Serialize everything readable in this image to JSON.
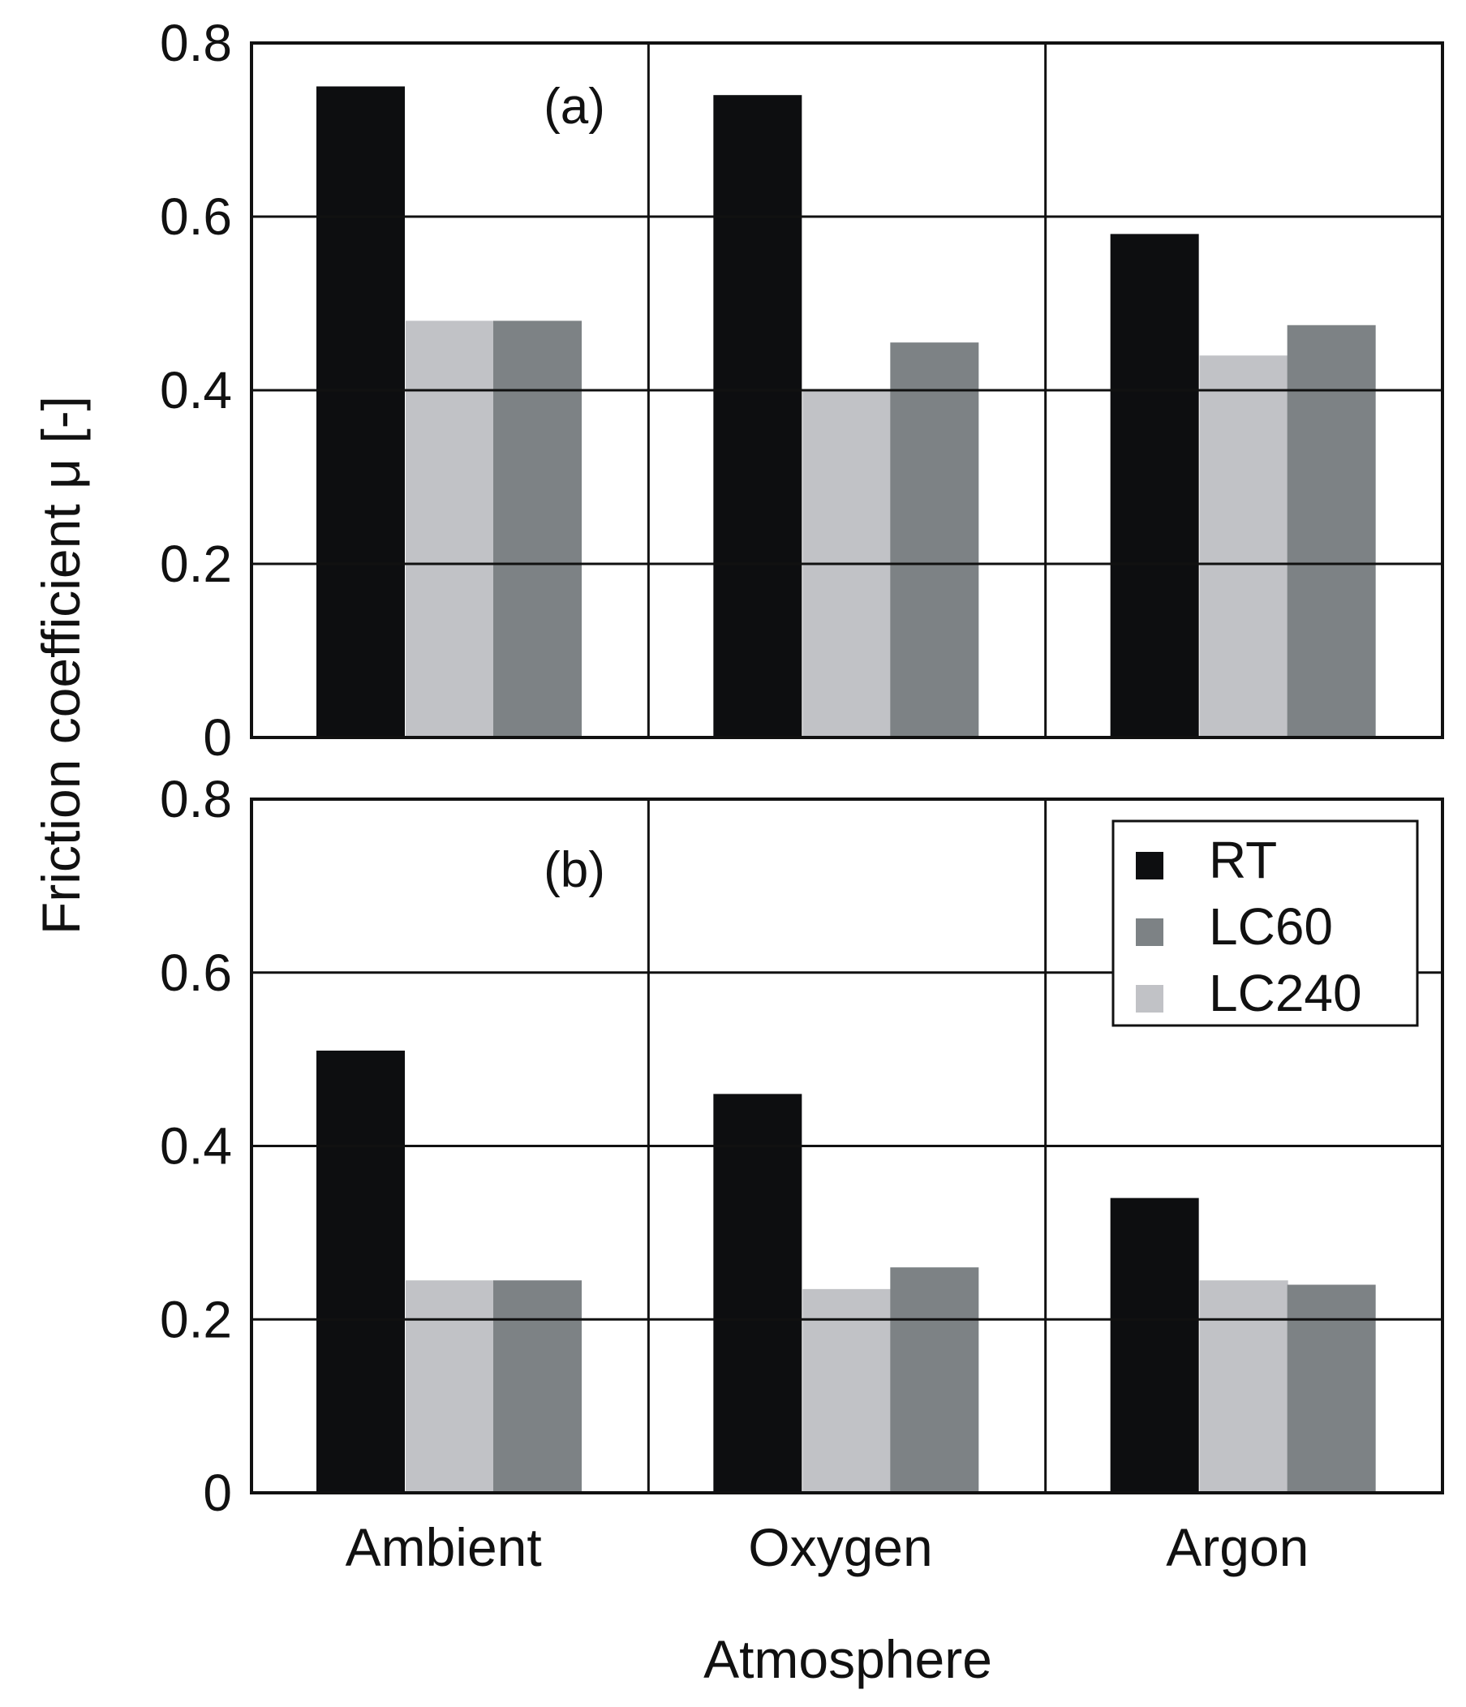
{
  "chart_data": [
    {
      "type": "bar",
      "panel": "(a)",
      "categories": [
        "Ambient",
        "Oxygen",
        "Argon"
      ],
      "series": [
        {
          "name": "RT",
          "values": [
            0.75,
            0.74,
            0.58
          ]
        },
        {
          "name": "LC240",
          "values": [
            0.48,
            0.4,
            0.44
          ]
        },
        {
          "name": "LC60",
          "values": [
            0.48,
            0.455,
            0.475
          ]
        }
      ],
      "ylim": [
        0,
        0.8
      ],
      "yticks": [
        "0",
        "0.2",
        "0.4",
        "0.6",
        "0.8"
      ],
      "grid": true
    },
    {
      "type": "bar",
      "panel": "(b)",
      "categories": [
        "Ambient",
        "Oxygen",
        "Argon"
      ],
      "series": [
        {
          "name": "RT",
          "values": [
            0.51,
            0.46,
            0.34
          ]
        },
        {
          "name": "LC240",
          "values": [
            0.245,
            0.235,
            0.245
          ]
        },
        {
          "name": "LC60",
          "values": [
            0.245,
            0.26,
            0.24
          ]
        }
      ],
      "ylim": [
        0,
        0.8
      ],
      "yticks": [
        "0",
        "0.2",
        "0.4",
        "0.6",
        "0.8"
      ],
      "grid": true
    }
  ],
  "shared": {
    "xlabel": "Atmosphere",
    "ylabel": "Friction coefficient μ [-]",
    "x_tick_labels": [
      "Ambient",
      "Oxygen",
      "Argon"
    ]
  },
  "legend": {
    "placement": "top-right of panel (b)",
    "entries": [
      {
        "name": "RT",
        "color": "#0d0e10"
      },
      {
        "name": "LC60",
        "color": "#7d8285"
      },
      {
        "name": "LC240",
        "color": "#c1c2c6"
      }
    ]
  },
  "colors": {
    "RT": "#0d0e10",
    "LC60": "#7d8285",
    "LC240": "#c1c2c6",
    "grid": "#111111"
  }
}
